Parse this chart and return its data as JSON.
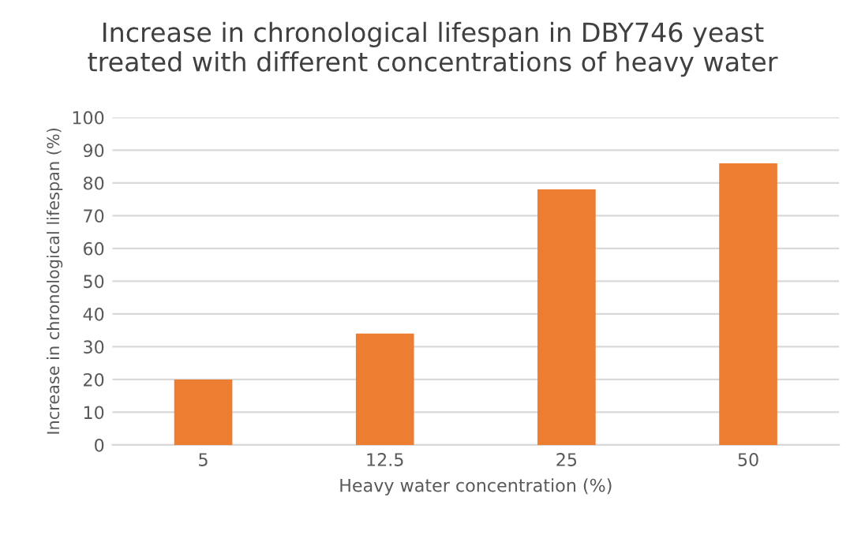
{
  "chart_data": {
    "type": "bar",
    "title": "Increase in chronological lifespan in DBY746 yeast\ntreated with different concentrations of heavy water",
    "xlabel": "Heavy water concentration (%)",
    "ylabel": "Increase in chronological lifespan (%)",
    "categories": [
      "5",
      "12.5",
      "25",
      "50"
    ],
    "values": [
      20,
      34,
      78,
      86
    ],
    "color": "#ed7d31",
    "ylim": [
      0,
      100
    ],
    "yticks": [
      0,
      10,
      20,
      30,
      40,
      50,
      60,
      70,
      80,
      90,
      100
    ],
    "grid": "y"
  }
}
